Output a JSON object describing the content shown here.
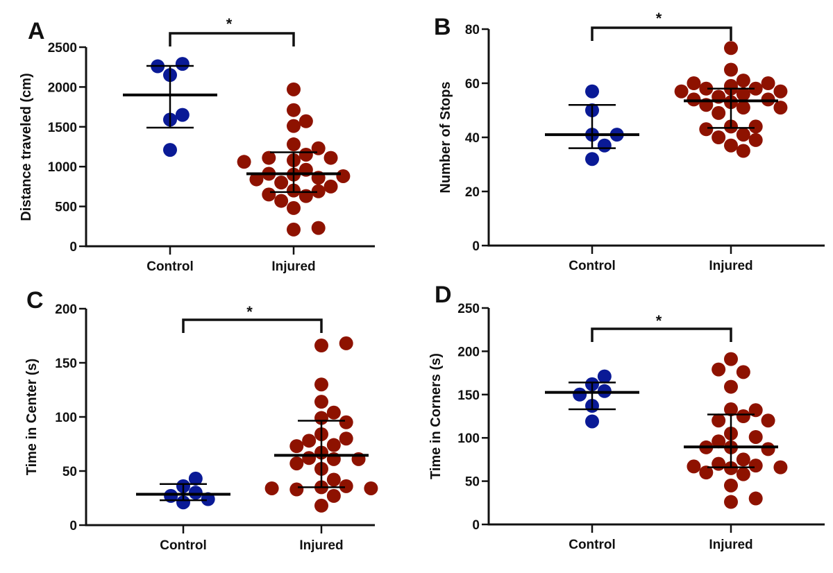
{
  "colors": {
    "control": "#0a1a96",
    "injured": "#8e1200",
    "axis": "#111111"
  },
  "chart_data": [
    {
      "type": "scatter",
      "panel_label": "A",
      "title": "",
      "xlabel": "",
      "ylabel": "Distance traveled (cm)",
      "categories": [
        "Control",
        "Injured"
      ],
      "ylim": [
        0,
        2500
      ],
      "yticks": [
        0,
        500,
        1000,
        1500,
        2000,
        2500
      ],
      "grid": false,
      "significance": {
        "between": [
          "Control",
          "Injured"
        ],
        "label": "*"
      },
      "series": [
        {
          "name": "Control",
          "values": [
            2150,
            2290,
            2260,
            1590,
            1650,
            1210
          ],
          "mean": 1900,
          "sd_low": 1490,
          "sd_high": 2265
        },
        {
          "name": "Injured",
          "values": [
            1970,
            1710,
            1510,
            1570,
            1280,
            1230,
            1150,
            1080,
            1110,
            1110,
            1060,
            960,
            900,
            910,
            860,
            880,
            800,
            840,
            700,
            750,
            630,
            650,
            690,
            570,
            480,
            210,
            230
          ],
          "mean": 910,
          "sd_low": 680,
          "sd_high": 1180
        }
      ]
    },
    {
      "type": "scatter",
      "panel_label": "B",
      "title": "",
      "xlabel": "",
      "ylabel": "Number of  Stops",
      "categories": [
        "Control",
        "Injured"
      ],
      "ylim": [
        0,
        80
      ],
      "yticks": [
        0,
        20,
        40,
        60,
        80
      ],
      "grid": false,
      "significance": {
        "between": [
          "Control",
          "Injured"
        ],
        "label": "*"
      },
      "series": [
        {
          "name": "Control",
          "values": [
            57,
            50,
            41,
            41,
            37,
            32
          ],
          "mean": 41,
          "sd_low": 36,
          "sd_high": 52
        },
        {
          "name": "Injured",
          "values": [
            73,
            65,
            61,
            59,
            58,
            58,
            57,
            60,
            60,
            57,
            56,
            58,
            55,
            54,
            54,
            53,
            51,
            52,
            51,
            49,
            44,
            44,
            43,
            41,
            40,
            39,
            37,
            35
          ],
          "mean": 53.5,
          "sd_low": 43.5,
          "sd_high": 58
        }
      ]
    },
    {
      "type": "scatter",
      "panel_label": "C",
      "title": "",
      "xlabel": "",
      "ylabel": "Time in Center (s)",
      "categories": [
        "Control",
        "Injured"
      ],
      "ylim": [
        0,
        200
      ],
      "yticks": [
        0,
        50,
        100,
        150,
        200
      ],
      "grid": false,
      "significance": {
        "between": [
          "Control",
          "Injured"
        ],
        "label": "*"
      },
      "series": [
        {
          "name": "Control",
          "values": [
            36,
            21,
            30,
            43,
            24,
            27
          ],
          "mean": 28.5,
          "sd_low": 23,
          "sd_high": 38
        },
        {
          "name": "Injured",
          "values": [
            166,
            168,
            130,
            114,
            104,
            99,
            95,
            84,
            80,
            78,
            74,
            73,
            67,
            62,
            61,
            61,
            57,
            52,
            42,
            35,
            36,
            33,
            34,
            34,
            27,
            18
          ],
          "mean": 64.5,
          "sd_low": 35,
          "sd_high": 96.5
        }
      ]
    },
    {
      "type": "scatter",
      "panel_label": "D",
      "title": "",
      "xlabel": "",
      "ylabel": "Time in Corners (s)",
      "categories": [
        "Control",
        "Injured"
      ],
      "ylim": [
        0,
        250
      ],
      "yticks": [
        0,
        50,
        100,
        150,
        200,
        250
      ],
      "grid": false,
      "significance": {
        "between": [
          "Control",
          "Injured"
        ],
        "label": "*"
      },
      "series": [
        {
          "name": "Control",
          "values": [
            162,
            171,
            154,
            150,
            137,
            119
          ],
          "mean": 152.5,
          "sd_low": 133,
          "sd_high": 164
        },
        {
          "name": "Injured",
          "values": [
            191,
            176,
            179,
            159,
            133,
            132,
            125,
            120,
            120,
            105,
            101,
            96,
            89,
            89,
            87,
            75,
            70,
            68,
            67,
            66,
            65,
            60,
            58,
            45,
            26,
            30
          ],
          "mean": 89.5,
          "sd_low": 66,
          "sd_high": 127
        }
      ]
    }
  ]
}
